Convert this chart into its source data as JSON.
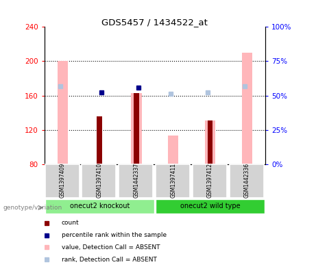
{
  "title": "GDS5457 / 1434522_at",
  "samples": [
    "GSM1397409",
    "GSM1397410",
    "GSM1442337",
    "GSM1397411",
    "GSM1397412",
    "GSM1442336"
  ],
  "ylim_left": [
    80,
    240
  ],
  "ylim_right": [
    0,
    100
  ],
  "yticks_left": [
    80,
    120,
    160,
    200,
    240
  ],
  "yticks_right": [
    0,
    25,
    50,
    75,
    100
  ],
  "yticklabels_right": [
    "0%",
    "25%",
    "50%",
    "75%",
    "100%"
  ],
  "absent_bar_values": [
    200,
    null,
    163,
    113,
    131,
    210
  ],
  "count_values": [
    null,
    136,
    163,
    null,
    131,
    null
  ],
  "rank_absent": [
    171,
    null,
    null,
    162,
    164,
    171
  ],
  "pct_present": [
    null,
    164,
    169,
    null,
    null,
    null
  ],
  "bar_color_absent": "#ffb6ba",
  "bar_color_count": "#8b0000",
  "rank_color_absent": "#b0c4de",
  "pct_color_present": "#00008b",
  "bg_color": "#ffffff",
  "group1_label": "onecut2 knockout",
  "group2_label": "onecut2 wild type",
  "group1_color": "#90ee90",
  "group2_color": "#32cd32",
  "legend_labels": [
    "count",
    "percentile rank within the sample",
    "value, Detection Call = ABSENT",
    "rank, Detection Call = ABSENT"
  ],
  "legend_colors": [
    "#8b0000",
    "#00008b",
    "#ffb6ba",
    "#b0c4de"
  ],
  "genotype_label": "genotype/variation"
}
